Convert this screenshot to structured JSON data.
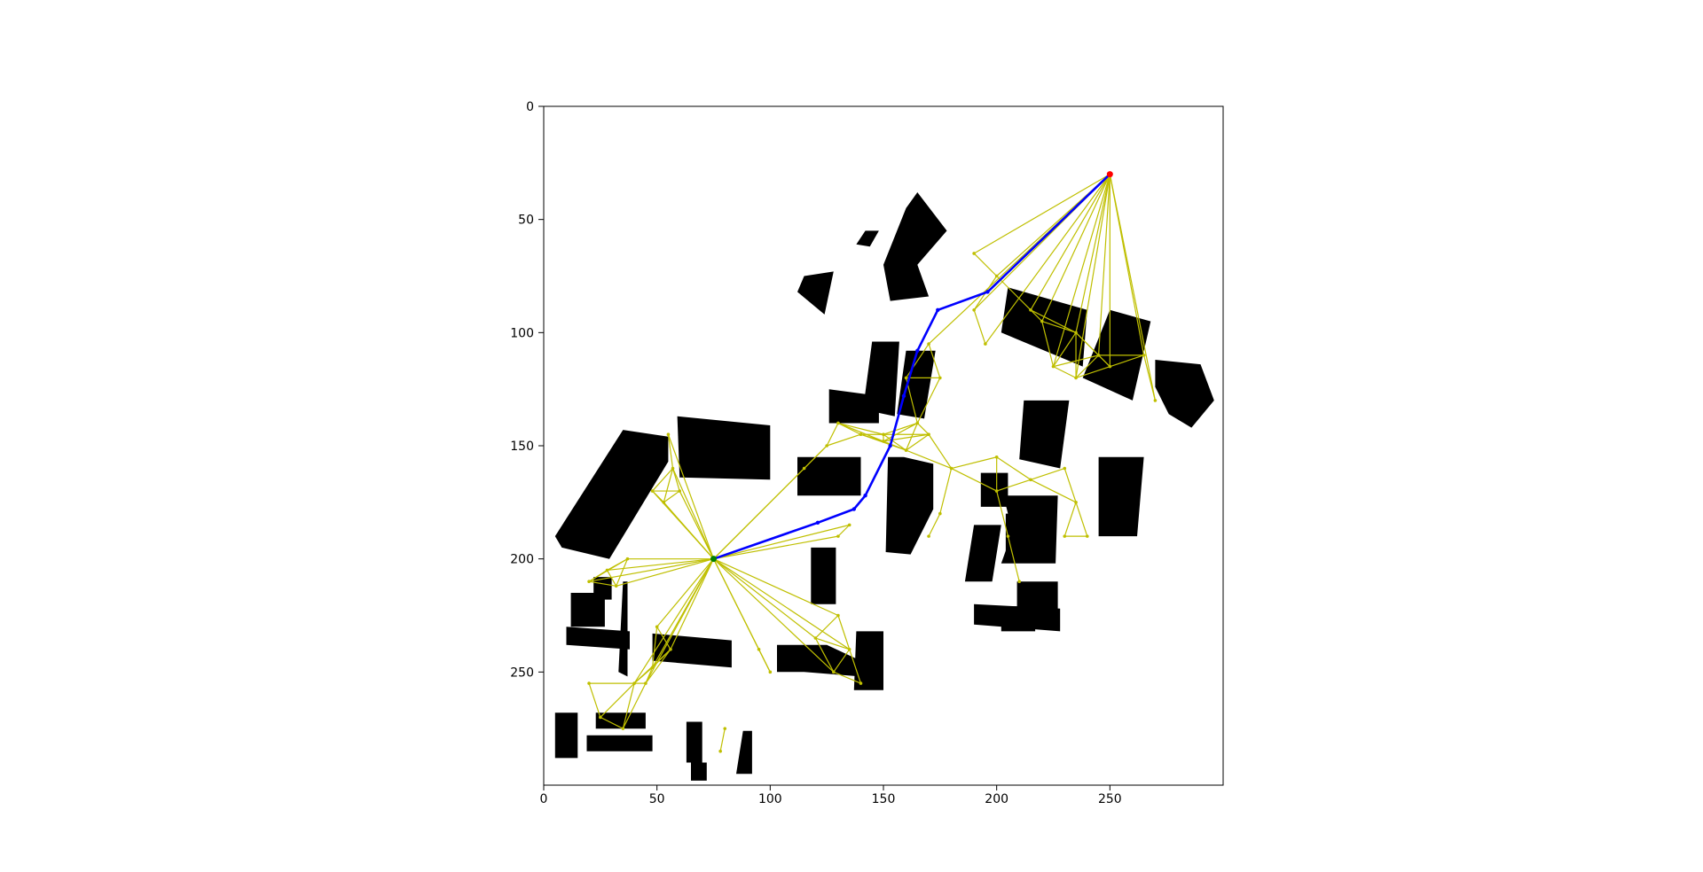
{
  "chart_data": {
    "type": "map",
    "xlim": [
      0,
      300
    ],
    "ylim": [
      300,
      0
    ],
    "x_ticks": [
      0,
      50,
      100,
      150,
      200,
      250
    ],
    "y_ticks": [
      0,
      50,
      100,
      150,
      200,
      250
    ],
    "grid": false,
    "legend": "none",
    "colors": {
      "obstacle": "#000000",
      "graph_edge": "#bfbf00",
      "path": "#0000ff",
      "start": "#008000",
      "goal": "#ff0000"
    },
    "start": [
      75,
      200
    ],
    "goal": [
      250,
      30
    ],
    "path": [
      [
        75,
        200
      ],
      [
        121,
        184
      ],
      [
        137,
        178
      ],
      [
        142,
        172
      ],
      [
        153,
        150
      ],
      [
        159,
        128
      ],
      [
        165,
        108
      ],
      [
        174,
        90
      ],
      [
        196,
        82
      ],
      [
        250,
        30
      ]
    ],
    "obstacles": [
      [
        [
          5,
          190
        ],
        [
          35,
          143
        ],
        [
          55,
          146
        ],
        [
          55,
          157
        ],
        [
          29,
          200
        ],
        [
          8,
          195
        ]
      ],
      [
        [
          59,
          137
        ],
        [
          100,
          141
        ],
        [
          100,
          165
        ],
        [
          60,
          164
        ]
      ],
      [
        [
          112,
          155
        ],
        [
          140,
          155
        ],
        [
          140,
          172
        ],
        [
          112,
          172
        ]
      ],
      [
        [
          126,
          125
        ],
        [
          148,
          128
        ],
        [
          148,
          140
        ],
        [
          126,
          140
        ]
      ],
      [
        [
          145,
          104
        ],
        [
          157,
          104
        ],
        [
          155,
          137
        ],
        [
          141,
          134
        ]
      ],
      [
        [
          160,
          108
        ],
        [
          173,
          108
        ],
        [
          168,
          138
        ],
        [
          156,
          136
        ]
      ],
      [
        [
          159,
          155
        ],
        [
          172,
          158
        ],
        [
          172,
          178
        ],
        [
          162,
          198
        ],
        [
          151,
          197
        ],
        [
          152,
          155
        ]
      ],
      [
        [
          193,
          162
        ],
        [
          205,
          162
        ],
        [
          205,
          177
        ],
        [
          193,
          177
        ]
      ],
      [
        [
          190,
          185
        ],
        [
          202,
          185
        ],
        [
          198,
          210
        ],
        [
          186,
          210
        ]
      ],
      [
        [
          203,
          172
        ],
        [
          227,
          172
        ],
        [
          226,
          202
        ],
        [
          202,
          202
        ],
        [
          207,
          188
        ]
      ],
      [
        [
          209,
          210
        ],
        [
          227,
          210
        ],
        [
          227,
          224
        ],
        [
          209,
          224
        ]
      ],
      [
        [
          204,
          180
        ],
        [
          218,
          180
        ],
        [
          220,
          200
        ],
        [
          204,
          200
        ]
      ],
      [
        [
          202,
          221
        ],
        [
          217,
          221
        ],
        [
          217,
          232
        ],
        [
          202,
          232
        ]
      ],
      [
        [
          190,
          220
        ],
        [
          228,
          222
        ],
        [
          228,
          232
        ],
        [
          190,
          229
        ]
      ],
      [
        [
          212,
          130
        ],
        [
          232,
          130
        ],
        [
          228,
          160
        ],
        [
          210,
          156
        ]
      ],
      [
        [
          245,
          155
        ],
        [
          265,
          155
        ],
        [
          262,
          190
        ],
        [
          245,
          190
        ]
      ],
      [
        [
          205,
          80
        ],
        [
          240,
          90
        ],
        [
          238,
          115
        ],
        [
          202,
          100
        ]
      ],
      [
        [
          250,
          90
        ],
        [
          268,
          95
        ],
        [
          260,
          130
        ],
        [
          238,
          120
        ]
      ],
      [
        [
          270,
          112
        ],
        [
          290,
          114
        ],
        [
          296,
          130
        ],
        [
          286,
          142
        ],
        [
          276,
          136
        ],
        [
          270,
          124
        ]
      ],
      [
        [
          160,
          45
        ],
        [
          165,
          38
        ],
        [
          178,
          55
        ],
        [
          165,
          70
        ],
        [
          170,
          84
        ],
        [
          153,
          86
        ],
        [
          150,
          70
        ]
      ],
      [
        [
          115,
          75
        ],
        [
          128,
          73
        ],
        [
          124,
          92
        ],
        [
          112,
          82
        ]
      ],
      [
        [
          142,
          55
        ],
        [
          148,
          55
        ],
        [
          144,
          62
        ],
        [
          138,
          61
        ]
      ],
      [
        [
          118,
          195
        ],
        [
          129,
          195
        ],
        [
          129,
          220
        ],
        [
          118,
          220
        ]
      ],
      [
        [
          103,
          238
        ],
        [
          125,
          238
        ],
        [
          140,
          245
        ],
        [
          140,
          252
        ],
        [
          115,
          250
        ],
        [
          103,
          250
        ]
      ],
      [
        [
          138,
          232
        ],
        [
          150,
          232
        ],
        [
          150,
          258
        ],
        [
          137,
          258
        ]
      ],
      [
        [
          48,
          233
        ],
        [
          83,
          236
        ],
        [
          83,
          248
        ],
        [
          48,
          245
        ]
      ],
      [
        [
          35,
          210
        ],
        [
          37,
          210
        ],
        [
          37,
          252
        ],
        [
          33,
          250
        ]
      ],
      [
        [
          10,
          230
        ],
        [
          38,
          232
        ],
        [
          38,
          240
        ],
        [
          10,
          238
        ]
      ],
      [
        [
          12,
          215
        ],
        [
          27,
          215
        ],
        [
          27,
          230
        ],
        [
          12,
          230
        ]
      ],
      [
        [
          22,
          208
        ],
        [
          30,
          208
        ],
        [
          30,
          218
        ],
        [
          22,
          218
        ]
      ],
      [
        [
          5,
          268
        ],
        [
          15,
          268
        ],
        [
          15,
          288
        ],
        [
          5,
          288
        ]
      ],
      [
        [
          23,
          268
        ],
        [
          45,
          268
        ],
        [
          45,
          275
        ],
        [
          23,
          275
        ]
      ],
      [
        [
          19,
          278
        ],
        [
          48,
          278
        ],
        [
          48,
          285
        ],
        [
          19,
          285
        ]
      ],
      [
        [
          63,
          272
        ],
        [
          70,
          272
        ],
        [
          70,
          290
        ],
        [
          63,
          290
        ]
      ],
      [
        [
          88,
          276
        ],
        [
          92,
          276
        ],
        [
          92,
          295
        ],
        [
          85,
          295
        ]
      ],
      [
        [
          65,
          290
        ],
        [
          72,
          290
        ],
        [
          72,
          298
        ],
        [
          65,
          298
        ]
      ]
    ]
  }
}
